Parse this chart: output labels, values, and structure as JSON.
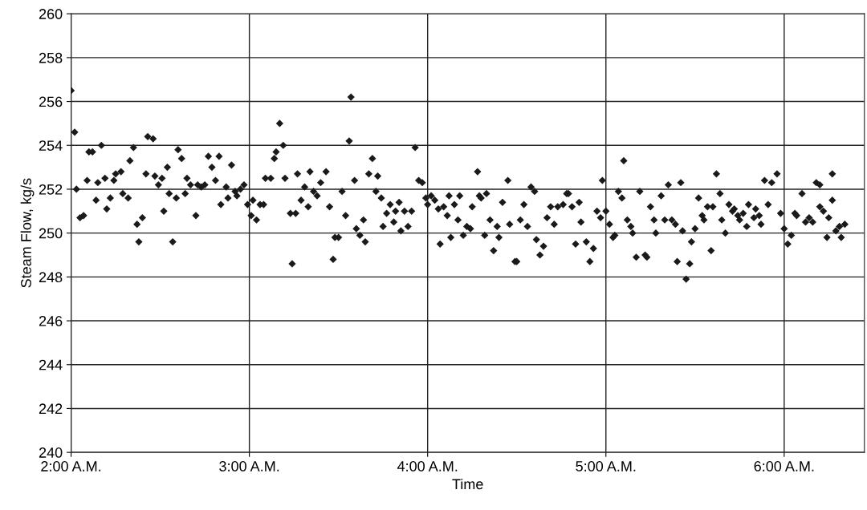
{
  "chart_data": {
    "type": "scatter",
    "xlabel": "Time",
    "ylabel": "Steam Flow, kg/s",
    "xlim": [
      2,
      6.45
    ],
    "xticks": [
      {
        "value": 2,
        "label": "2:00 A.M."
      },
      {
        "value": 3,
        "label": "3:00 A.M."
      },
      {
        "value": 4,
        "label": "4:00 A.M."
      },
      {
        "value": 5,
        "label": "5:00 A.M."
      },
      {
        "value": 6,
        "label": "6:00 A.M."
      }
    ],
    "ylim": [
      240,
      260
    ],
    "yticks": [
      240,
      242,
      244,
      246,
      248,
      250,
      252,
      254,
      256,
      258,
      260
    ],
    "grid": true,
    "marker": "diamond",
    "series": [
      {
        "color": "#1a1a1a",
        "x": [
          2.0,
          2.02,
          2.03,
          2.05,
          2.07,
          2.09,
          2.1,
          2.12,
          2.14,
          2.15,
          2.17,
          2.19,
          2.2,
          2.22,
          2.24,
          2.25,
          2.28,
          2.29,
          2.32,
          2.33,
          2.35,
          2.37,
          2.38,
          2.4,
          2.42,
          2.43,
          2.46,
          2.47,
          2.49,
          2.51,
          2.52,
          2.54,
          2.55,
          2.57,
          2.59,
          2.6,
          2.62,
          2.64,
          2.65,
          2.67,
          2.7,
          2.71,
          2.73,
          2.75,
          2.77,
          2.79,
          2.81,
          2.83,
          2.84,
          2.87,
          2.88,
          2.9,
          2.92,
          2.93,
          2.95,
          2.97,
          2.99,
          3.01,
          3.02,
          3.04,
          3.06,
          3.08,
          3.09,
          3.12,
          3.14,
          3.15,
          3.17,
          3.19,
          3.2,
          3.23,
          3.24,
          3.26,
          3.27,
          3.29,
          3.31,
          3.33,
          3.34,
          3.36,
          3.38,
          3.4,
          3.43,
          3.45,
          3.47,
          3.48,
          3.5,
          3.52,
          3.54,
          3.56,
          3.57,
          3.59,
          3.6,
          3.62,
          3.64,
          3.65,
          3.67,
          3.69,
          3.71,
          3.72,
          3.74,
          3.75,
          3.77,
          3.79,
          3.81,
          3.82,
          3.84,
          3.85,
          3.87,
          3.89,
          3.91,
          3.93,
          3.95,
          3.97,
          3.99,
          4.0,
          4.02,
          4.04,
          4.06,
          4.07,
          4.09,
          4.11,
          4.12,
          4.13,
          4.15,
          4.17,
          4.18,
          4.2,
          4.22,
          4.24,
          4.25,
          4.28,
          4.29,
          4.3,
          4.32,
          4.33,
          4.35,
          4.37,
          4.39,
          4.4,
          4.42,
          4.45,
          4.46,
          4.49,
          4.5,
          4.52,
          4.54,
          4.56,
          4.58,
          4.6,
          4.61,
          4.63,
          4.65,
          4.67,
          4.69,
          4.71,
          4.73,
          4.76,
          4.78,
          4.79,
          4.81,
          4.83,
          4.85,
          4.86,
          4.89,
          4.91,
          4.93,
          4.95,
          4.97,
          4.98,
          5.0,
          5.02,
          5.04,
          5.05,
          5.07,
          5.09,
          5.1,
          5.12,
          5.14,
          5.15,
          5.17,
          5.19,
          5.22,
          5.23,
          5.25,
          5.27,
          5.28,
          5.31,
          5.33,
          5.35,
          5.37,
          5.39,
          5.4,
          5.42,
          5.43,
          5.45,
          5.47,
          5.48,
          5.5,
          5.52,
          5.54,
          5.55,
          5.57,
          5.59,
          5.6,
          5.62,
          5.64,
          5.65,
          5.67,
          5.69,
          5.71,
          5.72,
          5.74,
          5.75,
          5.77,
          5.79,
          5.8,
          5.83,
          5.84,
          5.86,
          5.87,
          5.89,
          5.91,
          5.93,
          5.96,
          5.98,
          6.0,
          6.02,
          6.04,
          6.06,
          6.07,
          6.1,
          6.12,
          6.14,
          6.16,
          6.18,
          6.2,
          6.2,
          6.22,
          6.24,
          6.25,
          6.27,
          6.27,
          6.29,
          6.31,
          6.32,
          6.34
        ],
        "values": [
          256.5,
          254.6,
          252.0,
          250.7,
          250.8,
          252.4,
          253.7,
          253.7,
          251.5,
          252.3,
          254.0,
          252.5,
          251.1,
          251.6,
          252.4,
          252.7,
          252.8,
          251.8,
          251.6,
          253.3,
          253.9,
          250.4,
          249.6,
          250.7,
          252.7,
          254.4,
          254.3,
          252.6,
          252.2,
          252.5,
          251.0,
          253.0,
          251.8,
          249.6,
          251.6,
          253.8,
          253.4,
          251.8,
          252.5,
          252.2,
          250.8,
          252.2,
          252.1,
          252.2,
          253.5,
          253.0,
          252.4,
          253.5,
          251.3,
          252.1,
          251.6,
          253.1,
          251.9,
          251.7,
          252.0,
          252.2,
          251.3,
          250.8,
          251.5,
          250.6,
          251.3,
          251.3,
          252.5,
          252.5,
          253.4,
          253.7,
          255.0,
          254.0,
          252.5,
          250.9,
          248.6,
          250.9,
          252.7,
          251.5,
          252.1,
          251.2,
          252.8,
          251.9,
          251.7,
          252.3,
          252.8,
          251.2,
          248.8,
          249.8,
          249.8,
          251.9,
          250.8,
          254.2,
          256.2,
          252.4,
          250.2,
          249.9,
          250.6,
          249.6,
          252.7,
          253.4,
          251.9,
          252.6,
          251.6,
          250.3,
          250.9,
          251.3,
          250.5,
          251.0,
          251.4,
          250.1,
          251.0,
          250.3,
          251.0,
          253.9,
          252.4,
          252.3,
          251.6,
          251.3,
          251.7,
          251.5,
          251.1,
          249.5,
          251.2,
          250.8,
          251.7,
          249.8,
          251.3,
          250.6,
          251.7,
          249.9,
          250.3,
          250.2,
          251.2,
          252.8,
          251.7,
          251.6,
          249.9,
          251.8,
          250.6,
          249.2,
          250.3,
          249.8,
          251.4,
          252.4,
          250.4,
          248.7,
          248.7,
          250.6,
          251.3,
          250.3,
          252.1,
          251.9,
          249.7,
          249.0,
          249.4,
          250.7,
          251.2,
          250.4,
          251.2,
          251.3,
          251.8,
          251.8,
          251.2,
          249.5,
          251.4,
          250.5,
          249.6,
          248.7,
          249.3,
          251.0,
          250.7,
          252.4,
          251.0,
          250.4,
          249.8,
          249.9,
          251.9,
          251.6,
          253.3,
          250.6,
          250.3,
          250.0,
          248.9,
          251.9,
          249.0,
          248.9,
          251.2,
          250.6,
          250.0,
          251.7,
          250.6,
          252.2,
          250.6,
          250.4,
          248.7,
          252.3,
          250.1,
          247.9,
          248.6,
          249.6,
          250.2,
          251.6,
          250.8,
          250.6,
          251.2,
          249.2,
          251.2,
          252.7,
          251.8,
          250.6,
          250.0,
          251.3,
          251.0,
          251.1,
          250.8,
          250.6,
          250.9,
          250.3,
          251.3,
          250.7,
          251.1,
          250.8,
          250.4,
          252.4,
          251.3,
          252.3,
          252.7,
          250.9,
          250.2,
          249.5,
          249.9,
          250.9,
          250.8,
          251.8,
          250.5,
          250.7,
          250.5,
          252.3,
          252.2,
          251.2,
          251.0,
          249.8,
          250.7,
          251.5,
          252.7,
          250.1,
          250.3,
          249.8,
          250.4
        ]
      }
    ]
  }
}
